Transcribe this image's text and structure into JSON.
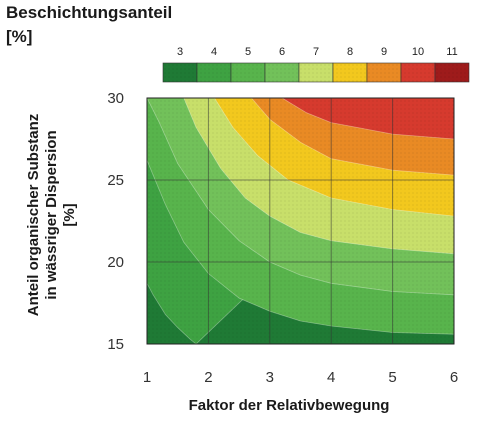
{
  "legend": {
    "title": "Beschichtungsanteil",
    "unit": "[%]"
  },
  "chart_data": {
    "type": "heatmap",
    "subtype": "filled-contour",
    "xlabel": "Faktor der Relativbewegung",
    "ylabel": [
      "Anteil organischer Substanz",
      "in wässriger Dispersion",
      "[%]"
    ],
    "xlim": [
      1,
      6
    ],
    "ylim": [
      15,
      30
    ],
    "xticks": [
      1,
      2,
      3,
      4,
      5,
      6
    ],
    "yticks": [
      15,
      20,
      25,
      30
    ],
    "grid": true,
    "colorbar": {
      "placement": "top",
      "levels": [
        3,
        4,
        5,
        6,
        7,
        8,
        9,
        10,
        11
      ],
      "colors": [
        "#1f7a35",
        "#3ea242",
        "#58b44c",
        "#72c15a",
        "#c8df6a",
        "#f2c81e",
        "#e98a24",
        "#d63a2e",
        "#9e1b1b"
      ]
    },
    "contours": [
      {
        "level": 4,
        "points": [
          [
            1.0,
            18.7
          ],
          [
            1.1,
            18.0
          ],
          [
            1.3,
            16.8
          ],
          [
            1.5,
            16.0
          ],
          [
            1.7,
            15.3
          ],
          [
            1.8,
            15.0
          ]
        ]
      },
      {
        "level": 5,
        "points": [
          [
            1.0,
            26.2
          ],
          [
            1.3,
            23.5
          ],
          [
            1.6,
            21.2
          ],
          [
            2.0,
            19.3
          ],
          [
            2.5,
            17.8
          ],
          [
            3.0,
            17.0
          ],
          [
            3.5,
            16.4
          ],
          [
            4.0,
            16.1
          ],
          [
            5.0,
            15.7
          ],
          [
            6.0,
            15.6
          ]
        ]
      },
      {
        "level": 6,
        "points": [
          [
            1.0,
            30.0
          ],
          [
            1.2,
            28.5
          ],
          [
            1.5,
            26.0
          ],
          [
            2.0,
            23.2
          ],
          [
            2.5,
            21.3
          ],
          [
            3.0,
            20.0
          ],
          [
            3.5,
            19.2
          ],
          [
            4.0,
            18.7
          ],
          [
            5.0,
            18.2
          ],
          [
            6.0,
            18.0
          ]
        ]
      },
      {
        "level": 7,
        "points": [
          [
            1.6,
            30.0
          ],
          [
            1.8,
            28.2
          ],
          [
            2.2,
            25.7
          ],
          [
            2.6,
            23.9
          ],
          [
            3.0,
            22.8
          ],
          [
            3.5,
            21.8
          ],
          [
            4.0,
            21.3
          ],
          [
            5.0,
            20.8
          ],
          [
            6.0,
            20.5
          ]
        ]
      },
      {
        "level": 8,
        "points": [
          [
            2.1,
            30.0
          ],
          [
            2.4,
            28.2
          ],
          [
            2.8,
            26.5
          ],
          [
            3.3,
            25.0
          ],
          [
            4.0,
            23.9
          ],
          [
            5.0,
            23.2
          ],
          [
            6.0,
            22.8
          ]
        ]
      },
      {
        "level": 9,
        "points": [
          [
            2.7,
            30.0
          ],
          [
            3.0,
            28.7
          ],
          [
            3.5,
            27.3
          ],
          [
            4.0,
            26.3
          ],
          [
            5.0,
            25.6
          ],
          [
            6.0,
            25.3
          ]
        ]
      },
      {
        "level": 10,
        "points": [
          [
            3.2,
            30.0
          ],
          [
            3.6,
            29.1
          ],
          [
            4.0,
            28.5
          ],
          [
            5.0,
            27.8
          ],
          [
            6.0,
            27.5
          ]
        ]
      }
    ]
  }
}
